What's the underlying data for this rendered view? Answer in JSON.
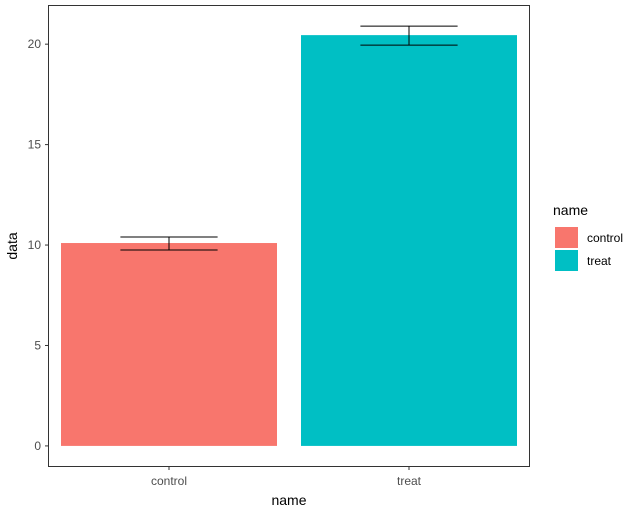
{
  "chart_data": {
    "type": "bar",
    "categories": [
      "control",
      "treat"
    ],
    "values": [
      10.1,
      20.45
    ],
    "error_bars": [
      {
        "low": 9.75,
        "high": 10.4
      },
      {
        "low": 19.95,
        "high": 20.9
      }
    ],
    "colors": [
      "#F8766D",
      "#00BFC4"
    ],
    "xlabel": "name",
    "ylabel": "data",
    "ylim": [
      -1,
      21.9
    ],
    "yticks": [
      0,
      5,
      10,
      15,
      20
    ],
    "grid": false,
    "legend": {
      "title": "name",
      "position": "right",
      "items": [
        "control",
        "treat"
      ]
    }
  }
}
